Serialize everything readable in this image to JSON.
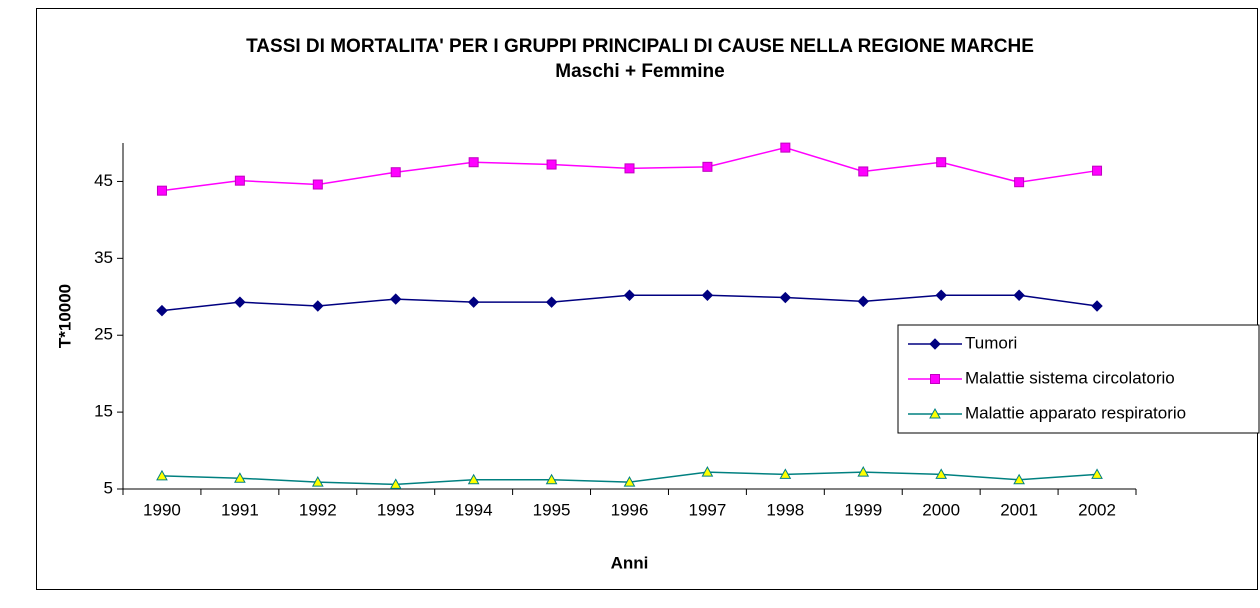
{
  "chart_data": {
    "type": "line",
    "title": "TASSI DI MORTALITA' PER I GRUPPI PRINCIPALI DI CAUSE NELLA REGIONE MARCHE",
    "subtitle": "Maschi + Femmine",
    "x_label": "Anni",
    "y_label": "T*10000",
    "categories": [
      "1990",
      "1991",
      "1992",
      "1993",
      "1994",
      "1995",
      "1996",
      "1997",
      "1998",
      "1999",
      "2000",
      "2001",
      "2002"
    ],
    "series": [
      {
        "name": "Tumori",
        "color": "#000080",
        "marker": "diamond",
        "values": [
          28.2,
          29.3,
          28.8,
          29.7,
          29.3,
          29.3,
          30.2,
          30.2,
          29.9,
          29.4,
          30.2,
          30.2,
          28.8
        ]
      },
      {
        "name": "Malattie sistema circolatorio",
        "color": "#ff00ff",
        "marker": "square",
        "values": [
          43.8,
          45.1,
          44.6,
          46.2,
          47.5,
          47.2,
          46.7,
          46.9,
          49.4,
          46.3,
          47.5,
          44.9,
          46.4
        ]
      },
      {
        "name": "Malattie apparato respiratorio",
        "color": "#008080",
        "marker": "triangle",
        "marker_fill": "#ffff00",
        "values": [
          6.7,
          6.4,
          5.9,
          5.6,
          6.2,
          6.2,
          5.9,
          7.2,
          6.9,
          7.2,
          6.9,
          6.2,
          6.9
        ]
      }
    ],
    "ylim": [
      5,
      50
    ],
    "yticks": [
      5,
      15,
      25,
      35,
      45
    ],
    "grid": false,
    "legend": "right"
  }
}
